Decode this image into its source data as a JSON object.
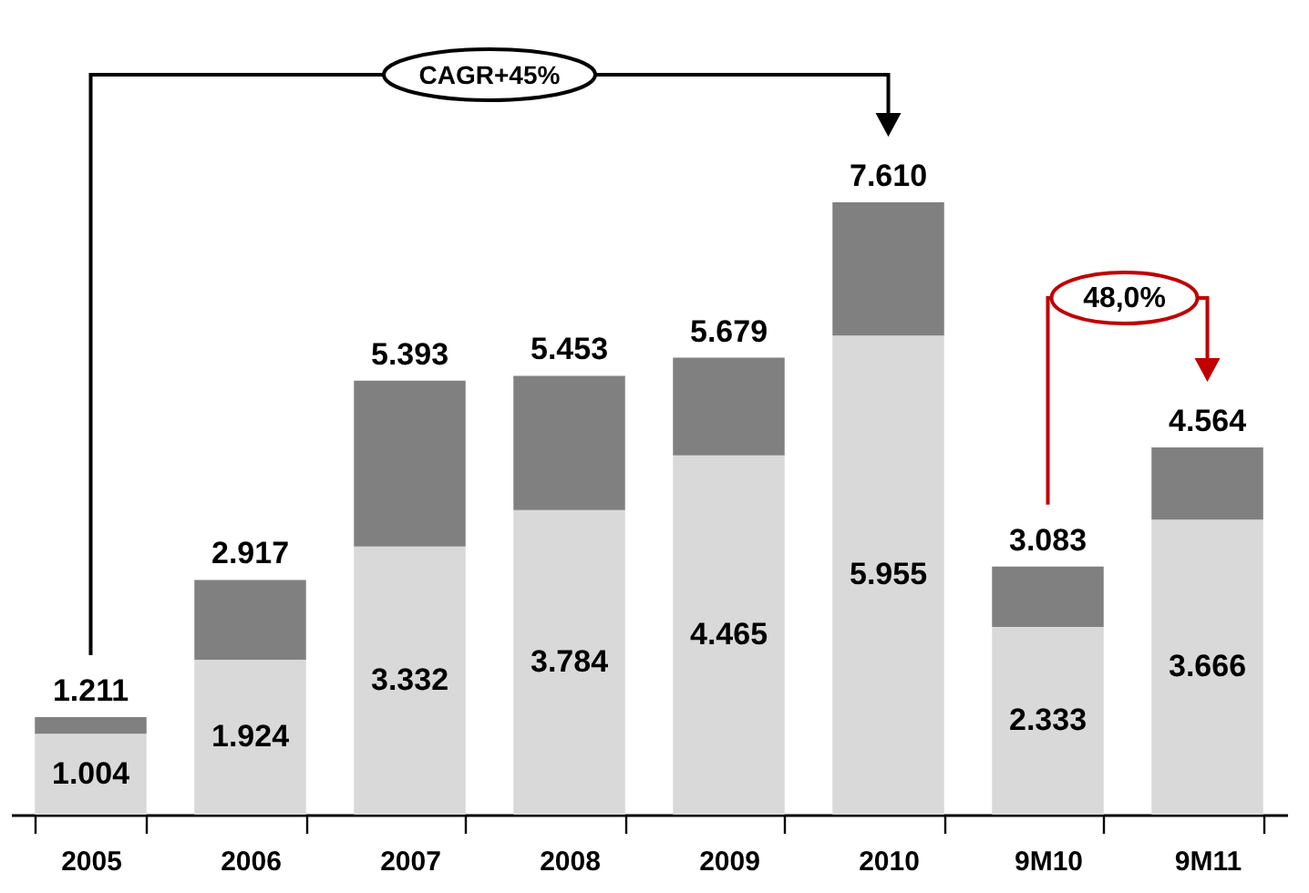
{
  "chart_data": {
    "type": "bar",
    "stacked": true,
    "categories": [
      "2005",
      "2006",
      "2007",
      "2008",
      "2009",
      "2010",
      "9M10",
      "9M11"
    ],
    "series": [
      {
        "color": "#d9d9d9",
        "values": [
          1004,
          1924,
          3332,
          3784,
          4465,
          5955,
          2333,
          3666
        ],
        "value_labels": [
          "1.004",
          "1.924",
          "3.332",
          "3.784",
          "4.465",
          "5.955",
          "2.333",
          "3.666"
        ]
      },
      {
        "color": "#808080",
        "values": [
          207,
          993,
          2061,
          1669,
          1214,
          1655,
          750,
          898
        ]
      }
    ],
    "totals": [
      "1.211",
      "2.917",
      "5.393",
      "5.453",
      "5.679",
      "7.610",
      "3.083",
      "4.564"
    ],
    "annotations": [
      "CAGR+45%",
      "48,0%"
    ],
    "grid": false,
    "legend": false
  }
}
